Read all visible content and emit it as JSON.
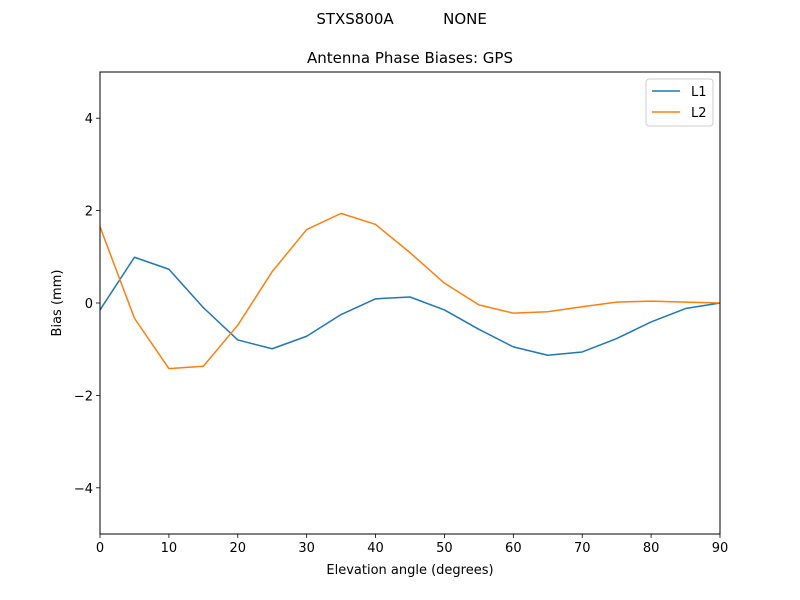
{
  "figure": {
    "suptitle_antenna": "STXS800A",
    "suptitle_radome": "NONE"
  },
  "chart_data": {
    "type": "line",
    "title": "Antenna Phase Biases: GPS",
    "xlabel": "Elevation angle (degrees)",
    "ylabel": "Bias (mm)",
    "xlim": [
      0,
      90
    ],
    "ylim": [
      -5,
      5
    ],
    "xticks": [
      0,
      10,
      20,
      30,
      40,
      50,
      60,
      70,
      80,
      90
    ],
    "yticks": [
      -4,
      -2,
      0,
      2,
      4
    ],
    "ytick_labels": [
      "−4",
      "−2",
      "0",
      "2",
      "4"
    ],
    "legend_position": "top-right",
    "grid": false,
    "x": [
      0,
      5,
      10,
      15,
      20,
      25,
      30,
      35,
      40,
      45,
      50,
      55,
      60,
      65,
      70,
      75,
      80,
      85,
      90
    ],
    "series": [
      {
        "name": "L1",
        "color": "#1f77b4",
        "values": [
          -0.15,
          0.99,
          0.73,
          -0.1,
          -0.8,
          -0.99,
          -0.72,
          -0.25,
          0.09,
          0.13,
          -0.15,
          -0.57,
          -0.95,
          -1.13,
          -1.06,
          -0.77,
          -0.41,
          -0.12,
          0.0
        ]
      },
      {
        "name": "L2",
        "color": "#ff7f0e",
        "values": [
          1.65,
          -0.33,
          -1.42,
          -1.37,
          -0.48,
          0.68,
          1.59,
          1.94,
          1.7,
          1.09,
          0.43,
          -0.04,
          -0.22,
          -0.19,
          -0.08,
          0.02,
          0.04,
          0.02,
          0.0
        ]
      }
    ]
  }
}
